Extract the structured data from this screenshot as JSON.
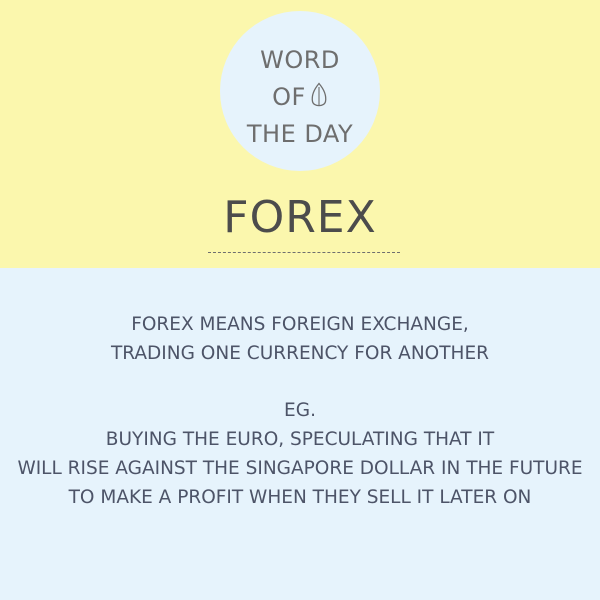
{
  "badge": {
    "line1": "WORD",
    "line2": "OF",
    "line3": "THE DAY",
    "icon": "leaf-icon"
  },
  "word": "FOREX",
  "definition": {
    "line1": "FOREX MEANS FOREIGN EXCHANGE,",
    "line2": "TRADING ONE CURRENCY FOR ANOTHER"
  },
  "example": {
    "label": "EG.",
    "line1": "BUYING THE EURO, SPECULATING THAT IT",
    "line2": "WILL RISE AGAINST THE SINGAPORE DOLLAR IN THE FUTURE",
    "line3": "TO MAKE A PROFIT WHEN THEY SELL IT LATER ON"
  },
  "colors": {
    "top_background": "#fbf7ad",
    "bottom_background": "#e6f3fc",
    "badge_background": "#e6f3fc",
    "title_text": "#4c4c4c",
    "badge_text": "#6e6e6e",
    "body_text": "#4d5468"
  }
}
